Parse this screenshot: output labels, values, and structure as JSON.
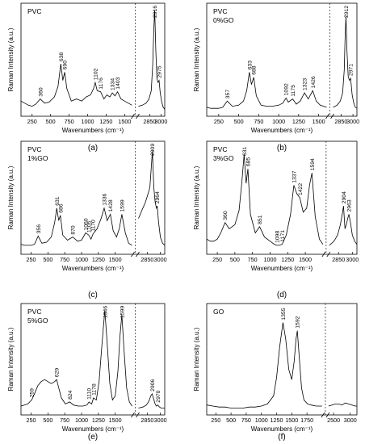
{
  "figure": {
    "x_title": "Wavenumbers (cm⁻¹)",
    "y_title": "Raman Intensity (a.u.)"
  },
  "chart_data": [
    {
      "type": "line",
      "panel_label": "(a)",
      "sample_label": [
        "PVC"
      ],
      "axis_break": [
        1600,
        2700
      ],
      "x_segments": [
        {
          "range": [
            100,
            1600
          ],
          "ticks": [
            250,
            500,
            750,
            1000,
            1250,
            1500
          ]
        },
        {
          "range": [
            2700,
            3050
          ],
          "ticks": [
            2850,
            3000
          ]
        }
      ],
      "peak_labels": [
        {
          "x": 360,
          "text": "360"
        },
        {
          "x": 638,
          "text": "638"
        },
        {
          "x": 690,
          "text": "690"
        },
        {
          "x": 1102,
          "text": "1102"
        },
        {
          "x": 1176,
          "text": "1176"
        },
        {
          "x": 1334,
          "text": "1334"
        },
        {
          "x": 1403,
          "text": "1403"
        },
        {
          "x": 2916,
          "text": "2916"
        },
        {
          "x": 2975,
          "text": "2975"
        }
      ],
      "series": [
        {
          "x": [
            100,
            150,
            200,
            250,
            300,
            360,
            420,
            480,
            550,
            600,
            638,
            665,
            690,
            720,
            780,
            850,
            920,
            980,
            1040,
            1080,
            1102,
            1130,
            1176,
            1220,
            1260,
            1300,
            1334,
            1370,
            1403,
            1450,
            1500,
            1550,
            1600,
            2700,
            2750,
            2800,
            2840,
            2870,
            2890,
            2905,
            2916,
            2930,
            2945,
            2960,
            2975,
            2990,
            3010,
            3030,
            3050
          ],
          "y": [
            0.1,
            0.08,
            0.06,
            0.05,
            0.07,
            0.12,
            0.08,
            0.09,
            0.14,
            0.24,
            0.46,
            0.3,
            0.38,
            0.22,
            0.1,
            0.12,
            0.1,
            0.14,
            0.16,
            0.22,
            0.28,
            0.2,
            0.19,
            0.12,
            0.16,
            0.14,
            0.18,
            0.15,
            0.19,
            0.12,
            0.1,
            0.08,
            0.06,
            0.05,
            0.06,
            0.08,
            0.12,
            0.2,
            0.45,
            0.8,
            0.98,
            0.6,
            0.32,
            0.28,
            0.3,
            0.18,
            0.09,
            0.04,
            0.02
          ]
        }
      ]
    },
    {
      "type": "line",
      "panel_label": "(b)",
      "sample_label": [
        "PVC",
        "0%GO"
      ],
      "axis_break": [
        1600,
        2750
      ],
      "x_segments": [
        {
          "range": [
            100,
            1600
          ],
          "ticks": [
            250,
            500,
            750,
            1000,
            1250,
            1500
          ]
        },
        {
          "range": [
            2750,
            3050
          ],
          "ticks": [
            2850,
            3000
          ]
        }
      ],
      "peak_labels": [
        {
          "x": 357,
          "text": "357"
        },
        {
          "x": 633,
          "text": "633"
        },
        {
          "x": 688,
          "text": "688"
        },
        {
          "x": 1092,
          "text": "1092"
        },
        {
          "x": 1175,
          "text": "1175"
        },
        {
          "x": 1323,
          "text": "1323"
        },
        {
          "x": 1426,
          "text": "1426"
        },
        {
          "x": 2912,
          "text": "2912"
        },
        {
          "x": 2971,
          "text": "2971"
        }
      ],
      "series": [
        {
          "x": [
            100,
            150,
            200,
            250,
            300,
            357,
            420,
            500,
            560,
            600,
            633,
            660,
            688,
            720,
            780,
            850,
            920,
            1000,
            1050,
            1092,
            1120,
            1175,
            1220,
            1270,
            1323,
            1370,
            1426,
            1470,
            1520,
            1600,
            2750,
            2800,
            2840,
            2870,
            2890,
            2900,
            2912,
            2925,
            2940,
            2955,
            2971,
            2990,
            3010,
            3030,
            3050
          ],
          "y": [
            0.04,
            0.03,
            0.03,
            0.03,
            0.04,
            0.1,
            0.05,
            0.06,
            0.1,
            0.2,
            0.38,
            0.26,
            0.33,
            0.15,
            0.06,
            0.05,
            0.05,
            0.06,
            0.08,
            0.13,
            0.09,
            0.12,
            0.07,
            0.1,
            0.18,
            0.12,
            0.2,
            0.1,
            0.06,
            0.04,
            0.04,
            0.06,
            0.1,
            0.18,
            0.4,
            0.7,
            0.92,
            0.58,
            0.34,
            0.3,
            0.32,
            0.16,
            0.08,
            0.04,
            0.03
          ]
        }
      ]
    },
    {
      "type": "line",
      "panel_label": "(c)",
      "sample_label": [
        "PVC",
        "1%GO"
      ],
      "axis_break": [
        1750,
        2750
      ],
      "x_segments": [
        {
          "range": [
            100,
            1750
          ],
          "ticks": [
            250,
            500,
            750,
            1000,
            1250,
            1500
          ]
        },
        {
          "range": [
            2750,
            3050
          ],
          "ticks": [
            2850,
            3000
          ]
        }
      ],
      "peak_labels": [
        {
          "x": 356,
          "text": "356"
        },
        {
          "x": 631,
          "text": "631"
        },
        {
          "x": 686,
          "text": "686"
        },
        {
          "x": 870,
          "text": "870"
        },
        {
          "x": 1060,
          "text": "1060"
        },
        {
          "x": 1105,
          "text": "1105"
        },
        {
          "x": 1170,
          "text": "1170"
        },
        {
          "x": 1336,
          "text": "1336"
        },
        {
          "x": 1428,
          "text": "1428"
        },
        {
          "x": 1599,
          "text": "1599"
        },
        {
          "x": 2909,
          "text": "2909"
        },
        {
          "x": 2964,
          "text": "2964"
        }
      ],
      "series": [
        {
          "x": [
            100,
            150,
            200,
            250,
            300,
            356,
            410,
            480,
            550,
            600,
            631,
            660,
            686,
            720,
            790,
            870,
            940,
            1000,
            1060,
            1105,
            1140,
            1170,
            1230,
            1290,
            1336,
            1380,
            1428,
            1470,
            1520,
            1560,
            1599,
            1650,
            1700,
            1750,
            2750,
            2790,
            2830,
            2860,
            2880,
            2895,
            2909,
            2925,
            2940,
            2955,
            2964,
            2980,
            3000,
            3025,
            3050
          ],
          "y": [
            0.05,
            0.04,
            0.04,
            0.04,
            0.05,
            0.13,
            0.06,
            0.07,
            0.12,
            0.26,
            0.4,
            0.28,
            0.33,
            0.14,
            0.09,
            0.12,
            0.08,
            0.09,
            0.16,
            0.14,
            0.1,
            0.15,
            0.2,
            0.3,
            0.4,
            0.28,
            0.34,
            0.18,
            0.12,
            0.2,
            0.34,
            0.16,
            0.06,
            0.04,
            0.3,
            0.38,
            0.46,
            0.54,
            0.6,
            0.78,
            0.95,
            0.6,
            0.46,
            0.4,
            0.42,
            0.26,
            0.12,
            0.06,
            0.04
          ]
        }
      ]
    },
    {
      "type": "line",
      "panel_label": "(d)",
      "sample_label": [
        "PVC",
        "3%GO"
      ],
      "axis_break": [
        1750,
        2750
      ],
      "x_segments": [
        {
          "range": [
            100,
            1750
          ],
          "ticks": [
            250,
            500,
            750,
            1000,
            1250,
            1500
          ]
        },
        {
          "range": [
            2750,
            3050
          ],
          "ticks": [
            2850,
            3000
          ]
        }
      ],
      "peak_labels": [
        {
          "x": 360,
          "text": "360"
        },
        {
          "x": 631,
          "text": "631"
        },
        {
          "x": 685,
          "text": "685"
        },
        {
          "x": 851,
          "text": "851"
        },
        {
          "x": 1098,
          "text": "1098"
        },
        {
          "x": 1171,
          "text": "1171"
        },
        {
          "x": 1337,
          "text": "1337"
        },
        {
          "x": 1422,
          "text": "1422"
        },
        {
          "x": 1594,
          "text": "1594"
        },
        {
          "x": 2904,
          "text": "2904"
        },
        {
          "x": 2963,
          "text": "2963"
        }
      ],
      "series": [
        {
          "x": [
            100,
            150,
            200,
            250,
            300,
            360,
            420,
            500,
            560,
            600,
            631,
            660,
            685,
            720,
            790,
            851,
            920,
            1000,
            1060,
            1098,
            1130,
            1171,
            1230,
            1290,
            1337,
            1380,
            1422,
            1470,
            1520,
            1560,
            1594,
            1640,
            1700,
            1750,
            2750,
            2800,
            2840,
            2870,
            2890,
            2904,
            2920,
            2935,
            2950,
            2963,
            2980,
            3000,
            3025,
            3050
          ],
          "y": [
            0.1,
            0.08,
            0.08,
            0.1,
            0.16,
            0.26,
            0.2,
            0.24,
            0.38,
            0.66,
            0.92,
            0.64,
            0.78,
            0.34,
            0.16,
            0.22,
            0.12,
            0.08,
            0.05,
            0.04,
            0.04,
            0.05,
            0.14,
            0.34,
            0.62,
            0.54,
            0.5,
            0.36,
            0.4,
            0.62,
            0.74,
            0.32,
            0.1,
            0.05,
            0.04,
            0.08,
            0.14,
            0.24,
            0.34,
            0.42,
            0.2,
            0.24,
            0.3,
            0.34,
            0.26,
            0.14,
            0.08,
            0.05
          ]
        }
      ]
    },
    {
      "type": "line",
      "panel_label": "(e)",
      "sample_label": [
        "PVC",
        "5%GO"
      ],
      "axis_break": [
        1750,
        2750
      ],
      "x_segments": [
        {
          "range": [
            100,
            1750
          ],
          "ticks": [
            250,
            500,
            750,
            1000,
            1250,
            1500
          ]
        },
        {
          "range": [
            2750,
            3050
          ],
          "ticks": [
            2850,
            3000
          ]
        }
      ],
      "peak_labels": [
        {
          "x": 259,
          "text": "259"
        },
        {
          "x": 629,
          "text": "629"
        },
        {
          "x": 824,
          "text": "824"
        },
        {
          "x": 1110,
          "text": "1110"
        },
        {
          "x": 1178,
          "text": "1178"
        },
        {
          "x": 1346,
          "text": "1346"
        },
        {
          "x": 1599,
          "text": "1599"
        },
        {
          "x": 2906,
          "text": "2906"
        },
        {
          "x": 2970,
          "text": "2970"
        }
      ],
      "series": [
        {
          "x": [
            100,
            150,
            200,
            259,
            300,
            350,
            400,
            450,
            500,
            550,
            600,
            629,
            660,
            700,
            760,
            824,
            880,
            950,
            1020,
            1080,
            1110,
            1150,
            1178,
            1220,
            1260,
            1300,
            1346,
            1380,
            1420,
            1460,
            1500,
            1540,
            1570,
            1599,
            1630,
            1670,
            1710,
            1750,
            2750,
            2800,
            2840,
            2870,
            2890,
            2906,
            2920,
            2940,
            2955,
            2970,
            2990,
            3010,
            3030,
            3050
          ],
          "y": [
            0.04,
            0.05,
            0.06,
            0.1,
            0.16,
            0.24,
            0.28,
            0.3,
            0.28,
            0.26,
            0.28,
            0.3,
            0.22,
            0.12,
            0.06,
            0.08,
            0.05,
            0.04,
            0.04,
            0.05,
            0.08,
            0.06,
            0.12,
            0.1,
            0.28,
            0.62,
            0.98,
            0.66,
            0.26,
            0.1,
            0.14,
            0.38,
            0.72,
            0.94,
            0.6,
            0.22,
            0.08,
            0.04,
            0.02,
            0.03,
            0.05,
            0.09,
            0.14,
            0.16,
            0.12,
            0.06,
            0.04,
            0.05,
            0.03,
            0.02,
            0.02,
            0.02
          ]
        }
      ]
    },
    {
      "type": "line",
      "panel_label": "(f)",
      "sample_label": [
        "GO"
      ],
      "axis_break": [
        2000,
        2350
      ],
      "x_segments": [
        {
          "range": [
            100,
            2000
          ],
          "ticks": [
            250,
            500,
            750,
            1000,
            1250,
            1500,
            1750
          ]
        },
        {
          "range": [
            2350,
            3200
          ],
          "ticks": [
            2500,
            3000
          ]
        }
      ],
      "peak_labels": [
        {
          "x": 1355,
          "text": "1355"
        },
        {
          "x": 1592,
          "text": "1592"
        }
      ],
      "series": [
        {
          "x": [
            100,
            200,
            300,
            400,
            500,
            600,
            700,
            800,
            900,
            1000,
            1100,
            1200,
            1250,
            1300,
            1355,
            1400,
            1450,
            1500,
            1540,
            1570,
            1592,
            1620,
            1660,
            1700,
            1760,
            1820,
            1900,
            2000,
            2350,
            2450,
            2550,
            2650,
            2750,
            2850,
            2950,
            3050,
            3150,
            3200
          ],
          "y": [
            0.05,
            0.04,
            0.03,
            0.03,
            0.02,
            0.02,
            0.02,
            0.03,
            0.03,
            0.04,
            0.06,
            0.14,
            0.32,
            0.62,
            0.86,
            0.7,
            0.4,
            0.3,
            0.48,
            0.7,
            0.78,
            0.54,
            0.22,
            0.1,
            0.06,
            0.05,
            0.04,
            0.04,
            0.04,
            0.05,
            0.06,
            0.06,
            0.05,
            0.07,
            0.06,
            0.05,
            0.04,
            0.04
          ]
        }
      ]
    }
  ]
}
